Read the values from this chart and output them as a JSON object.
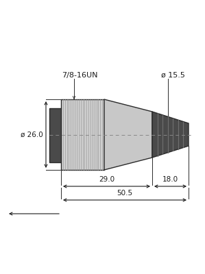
{
  "bg_color": "#ffffff",
  "line_color": "#2a2a2a",
  "connector_light": "#c8c8c8",
  "connector_mid": "#b0b0b0",
  "dark_body_color": "#4a4a4a",
  "knurl_color": "#d0d0d0",
  "knurl_line_color": "#999999",
  "centerline_color": "#888888",
  "dim_color": "#1a1a1a",
  "label_78_16UN": "7/8-16UN",
  "label_d26": "ø 26.0",
  "label_d155": "ø 15.5",
  "label_29": "29.0",
  "label_18": "18.0",
  "label_505": "50.5",
  "fig_w": 2.99,
  "fig_h": 4.0,
  "dpi": 100
}
